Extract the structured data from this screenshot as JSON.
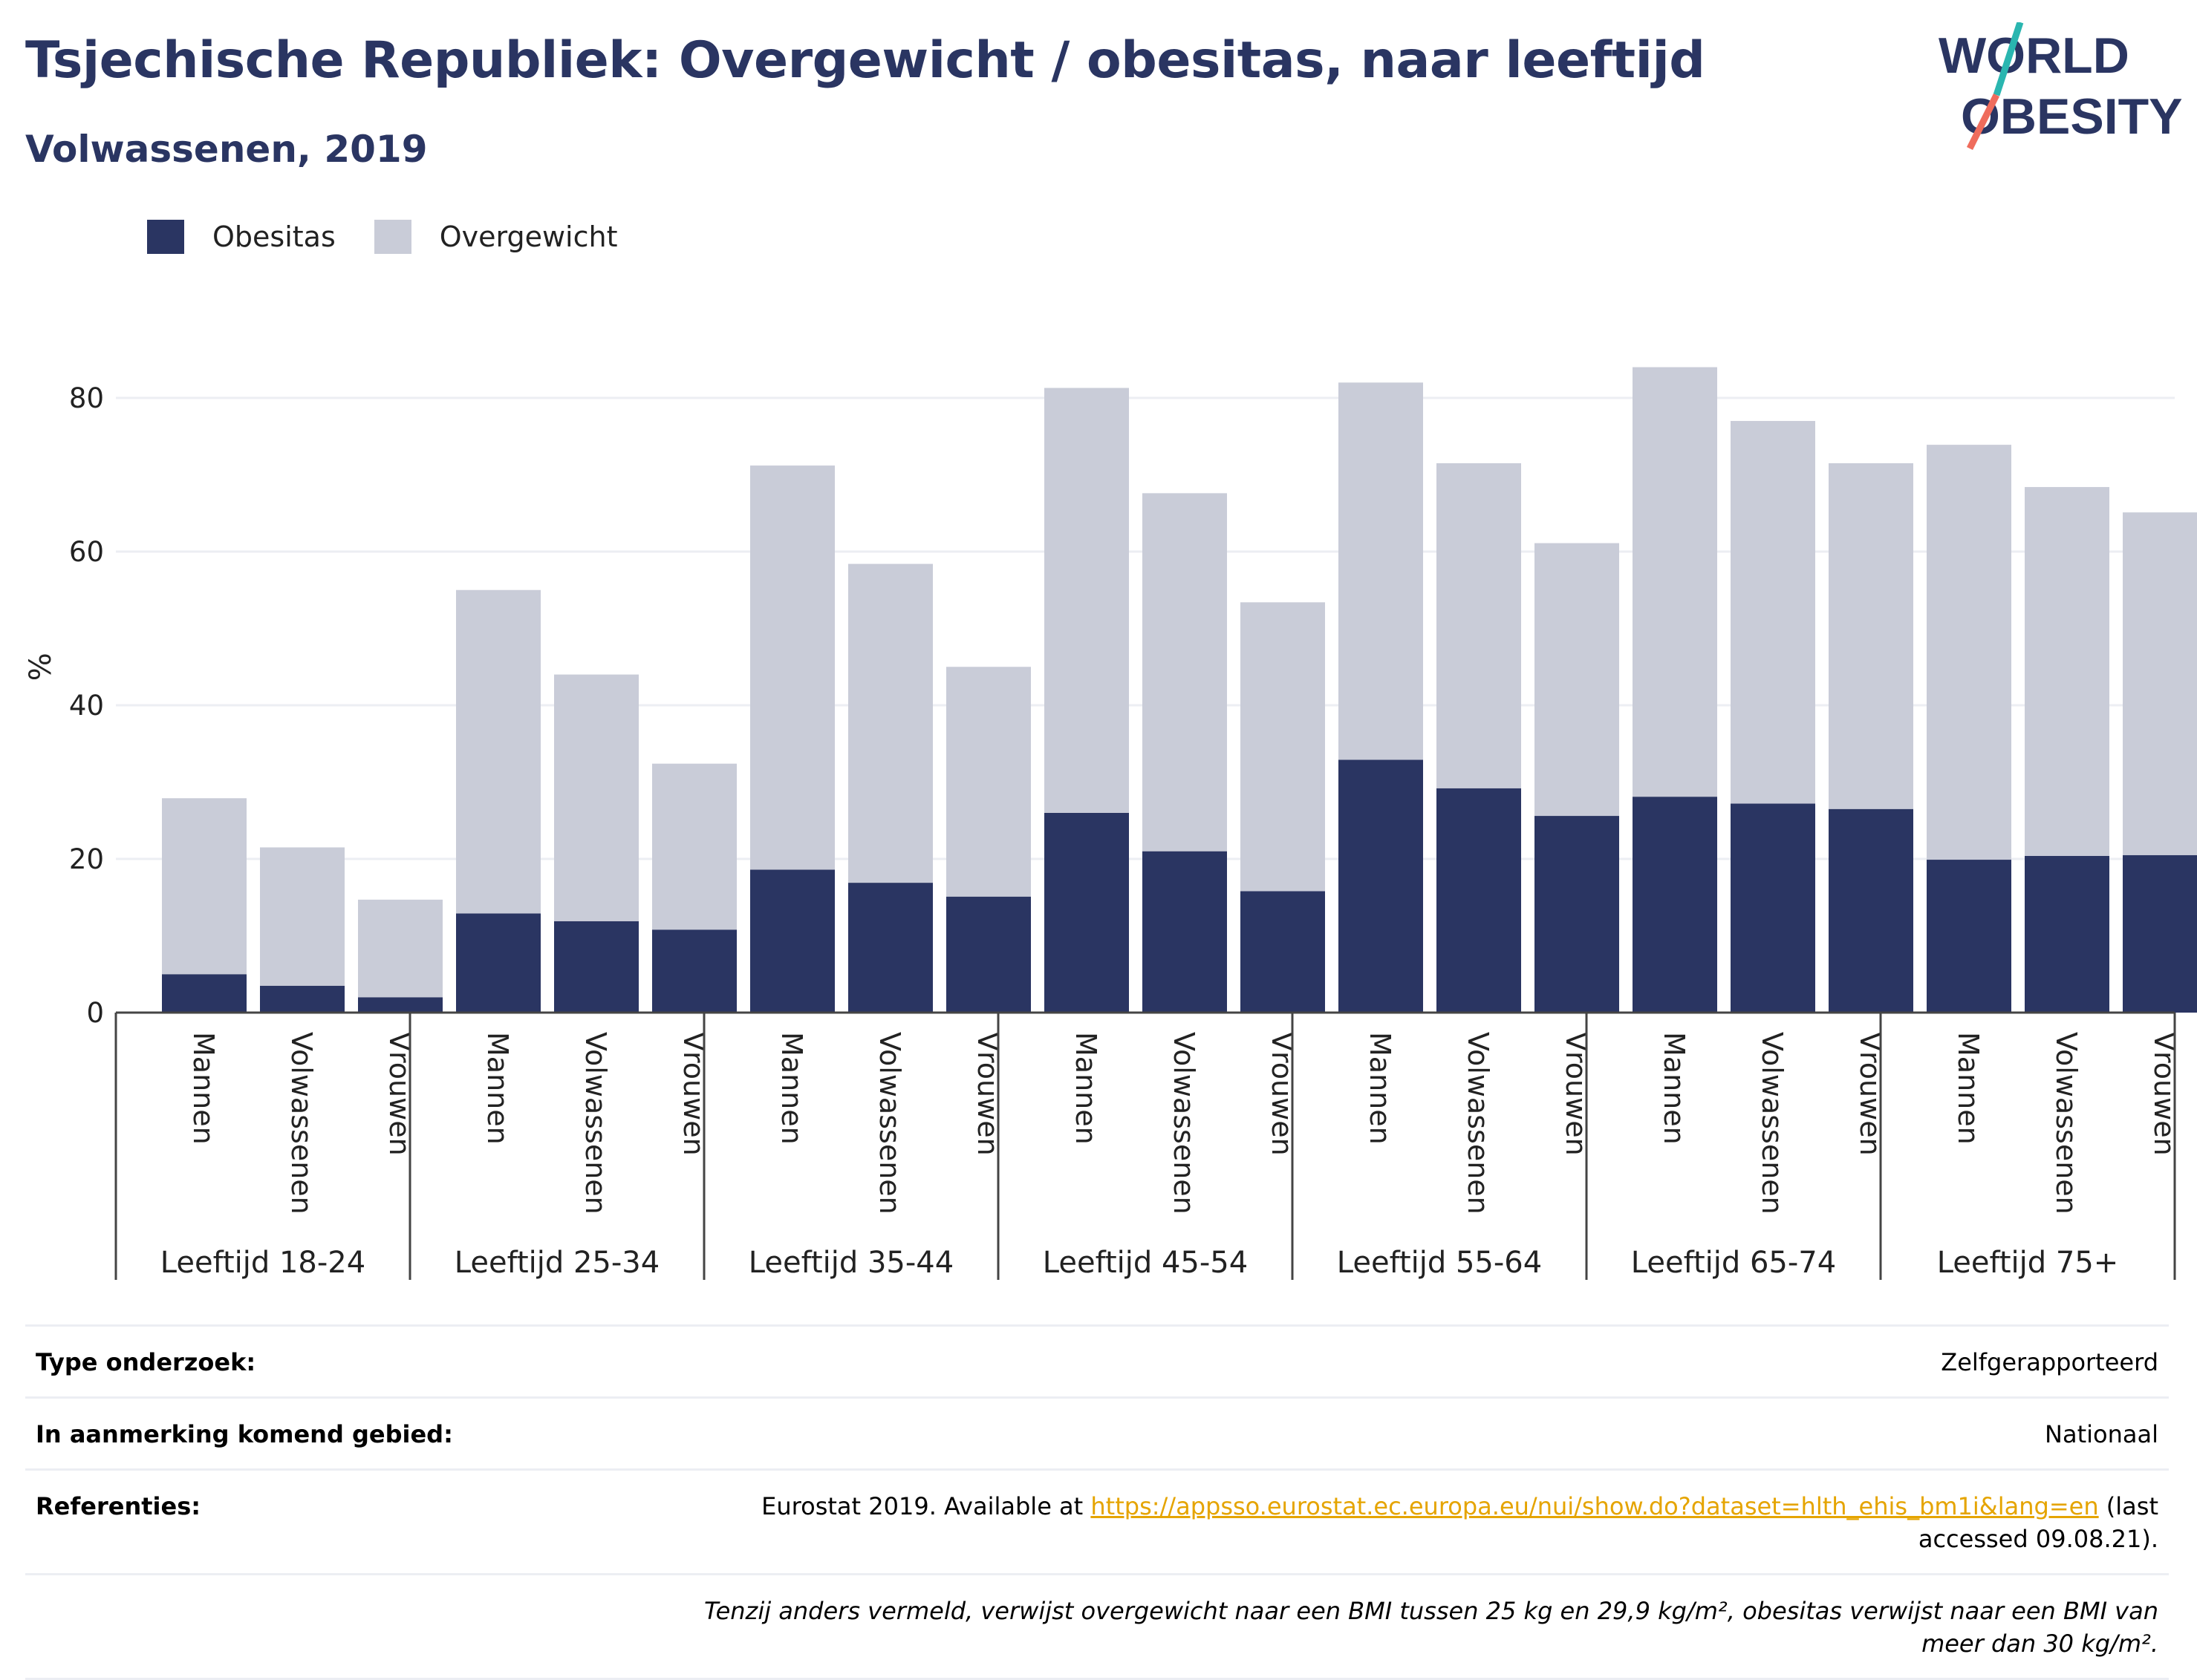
{
  "title": "Tsjechische Republiek: Overgewicht / obesitas, naar leeftijd",
  "subtitle": "Volwassenen, 2019",
  "logo": {
    "line1": "WORLD",
    "line2": "OBESITY"
  },
  "colors": {
    "title": "#2a3562",
    "obesitas": "#2a3562",
    "overgewicht": "#c9ccd8",
    "grid": "#eceef3",
    "link": "#e5a400"
  },
  "legend": [
    {
      "label": "Obesitas",
      "color": "#2a3562"
    },
    {
      "label": "Overgewicht",
      "color": "#c9ccd8"
    }
  ],
  "chart_data": {
    "type": "bar",
    "stacked": true,
    "ylabel": "%",
    "ylim": [
      0,
      90
    ],
    "yticks": [
      0,
      20,
      40,
      60,
      80
    ],
    "grid": true,
    "legend_position": "top-left",
    "groups": [
      "Leeftijd 18-24",
      "Leeftijd 25-34",
      "Leeftijd 35-44",
      "Leeftijd 45-54",
      "Leeftijd 55-64",
      "Leeftijd 65-74",
      "Leeftijd 75+"
    ],
    "subcategories": [
      "Mannen",
      "Volwassenen",
      "Vrouwen"
    ],
    "series": [
      {
        "name": "Obesitas",
        "values": [
          [
            5.0,
            3.5,
            2.0
          ],
          [
            12.9,
            11.9,
            10.8
          ],
          [
            18.6,
            16.9,
            15.1
          ],
          [
            26.0,
            21.0,
            15.8
          ],
          [
            32.9,
            29.2,
            25.6
          ],
          [
            28.1,
            27.2,
            26.5
          ],
          [
            19.9,
            20.4,
            20.5
          ]
        ]
      },
      {
        "name": "Overgewicht",
        "values": [
          [
            22.9,
            18.0,
            12.7
          ],
          [
            42.1,
            32.1,
            21.6
          ],
          [
            52.6,
            41.5,
            29.9
          ],
          [
            55.3,
            46.6,
            37.6
          ],
          [
            49.1,
            42.3,
            35.5
          ],
          [
            55.9,
            49.8,
            45.0
          ],
          [
            54.0,
            48.0,
            44.6
          ]
        ]
      }
    ]
  },
  "info": {
    "rows": [
      {
        "label": "Type onderzoek:",
        "value": "Zelfgerapporteerd"
      },
      {
        "label": "In aanmerking komend gebied:",
        "value": "Nationaal"
      }
    ],
    "references": {
      "label": "Referenties:",
      "prefix": "Eurostat 2019. Available at ",
      "link": "https://appsso.eurostat.ec.europa.eu/nui/show.do?dataset=hlth_ehis_bm1i&lang=en",
      "suffix": " (last accessed 09.08.21)."
    },
    "note": "Tenzij anders vermeld, verwijst overgewicht naar een BMI tussen 25 kg en 29,9 kg/m², obesitas verwijst naar een BMI van meer dan 30 kg/m²."
  }
}
